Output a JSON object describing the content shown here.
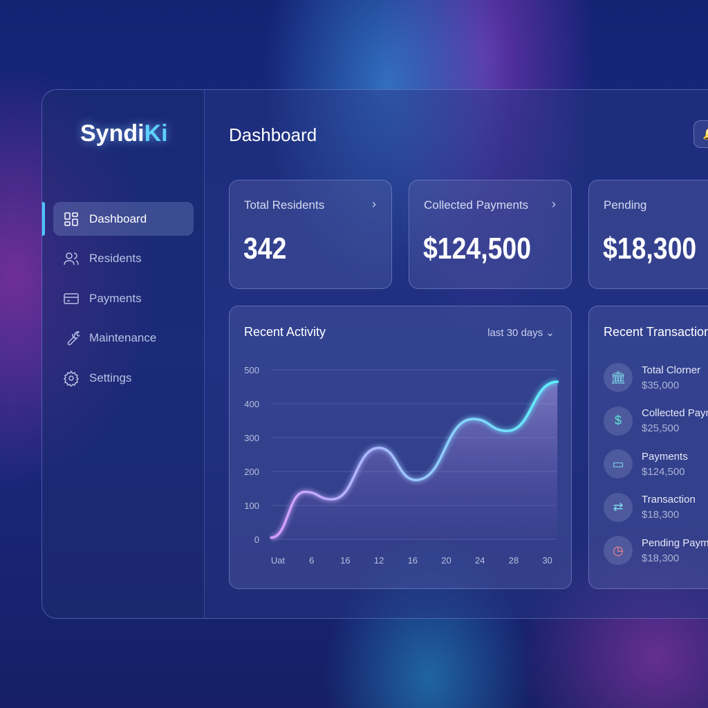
{
  "brand": {
    "name_a": "Syndi",
    "name_b": "Ki"
  },
  "sidebar": {
    "items": [
      {
        "label": "Dashboard",
        "icon": "dashboard-icon",
        "active": true
      },
      {
        "label": "Residents",
        "icon": "users-icon"
      },
      {
        "label": "Payments",
        "icon": "credit-card-icon"
      },
      {
        "label": "Maintenance",
        "icon": "wrench-icon"
      },
      {
        "label": "Settings",
        "icon": "gear-icon"
      }
    ]
  },
  "header": {
    "title": "Dashboard"
  },
  "stats": [
    {
      "label": "Total Residents",
      "value": "342"
    },
    {
      "label": "Collected Payments",
      "value": "$124,500"
    },
    {
      "label": "Pending",
      "value": "$18,300"
    }
  ],
  "activity": {
    "title": "Recent Activity",
    "range": "last 30 days"
  },
  "chart_data": {
    "type": "area",
    "title": "Recent Activity",
    "x_tick_labels": [
      "Uat",
      "6",
      "16",
      "12",
      "16",
      "20",
      "24",
      "28",
      "30"
    ],
    "y_ticks": [
      0,
      100,
      200,
      300,
      400,
      500
    ],
    "ylim": [
      0,
      500
    ],
    "grid": true,
    "points": [
      {
        "x": -0.2,
        "y": 5
      },
      {
        "x": 0.8,
        "y": 140
      },
      {
        "x": 1.6,
        "y": 118
      },
      {
        "x": 3,
        "y": 270
      },
      {
        "x": 4.1,
        "y": 175
      },
      {
        "x": 5.8,
        "y": 355
      },
      {
        "x": 6.8,
        "y": 320
      },
      {
        "x": 8.3,
        "y": 465
      }
    ],
    "colors": {
      "start": "#d59cff",
      "end": "#5ef0ff"
    }
  },
  "transactions": {
    "title": "Recent Transactions",
    "items": [
      {
        "name": "Total Clorner",
        "amount": "$35,000",
        "icon": "bank-icon",
        "glyph": "🏛",
        "color": "#7fd8e8"
      },
      {
        "name": "Collected Payments",
        "amount": "$25,500",
        "icon": "dollar-icon",
        "glyph": "$",
        "color": "#5fe0d0"
      },
      {
        "name": "Payments",
        "amount": "$124,500",
        "icon": "wallet-icon",
        "glyph": "▭",
        "color": "#7fd8e8"
      },
      {
        "name": "Transaction",
        "amount": "$18,300",
        "icon": "transfer-icon",
        "glyph": "⇄",
        "color": "#7fd8e8"
      },
      {
        "name": "Pending Payments",
        "amount": "$18,300",
        "icon": "clock-icon",
        "glyph": "◷",
        "color": "#ff8a8a"
      }
    ]
  }
}
